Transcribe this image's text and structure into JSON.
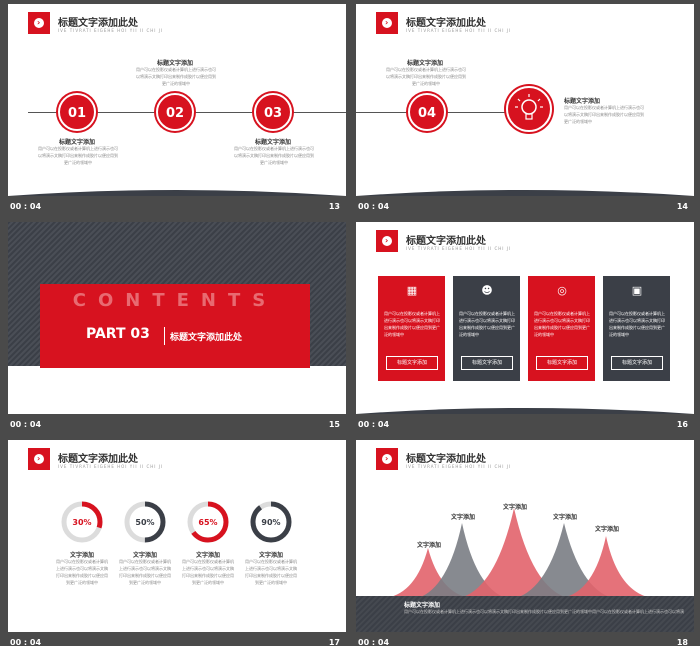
{
  "common": {
    "title": "标题文字添加此处",
    "subtitle": "IVE TIVRATI EIGEHE HOI YII II CHI JI",
    "time": "00 : 04",
    "text_title": "标题文字添加",
    "text_body_1": "用户可以在投影仪或者计算机上进行演示也可以将演示文稿打印出来制作成胶片以便应用到更广泛的领域中",
    "text_body_2": "用户可以在投影仪或者计算机上进行演示也可以将演示文稿打印出来制作成胶片以便应用到更广泛的领域中",
    "text_body_short": "用户可以在投影仪或者计算机上进行演示也可以将演示文稿打印出来制作成胶片以便应用到更广泛的领域中",
    "label_short": "文字添加"
  },
  "slides": [
    {
      "number": "13",
      "steps": [
        "01",
        "02",
        "03"
      ]
    },
    {
      "number": "14",
      "steps": [
        "04"
      ]
    },
    {
      "number": "15",
      "contents": "CONTENTS",
      "part": "PART 03",
      "part_title": "标题文字添加此处"
    },
    {
      "number": "16",
      "cards": [
        {
          "button": "标题文字添加",
          "color": "#d7121f"
        },
        {
          "button": "标题文字添加",
          "color": "#3b3f47"
        },
        {
          "button": "标题文字添加",
          "color": "#d7121f"
        },
        {
          "button": "标题文字添加",
          "color": "#3b3f47"
        }
      ]
    },
    {
      "number": "17",
      "donuts": [
        {
          "label": "30%",
          "value": 30,
          "color": "#d7121f"
        },
        {
          "label": "50%",
          "value": 50,
          "color": "#3b3f47"
        },
        {
          "label": "65%",
          "value": 65,
          "color": "#d7121f"
        },
        {
          "label": "90%",
          "value": 90,
          "color": "#3b3f47"
        }
      ]
    },
    {
      "number": "18",
      "peaks": [
        "文字添加",
        "文字添加",
        "文字添加",
        "文字添加",
        "文字添加"
      ],
      "footer_title": "标题文字添加",
      "footer_body": "用户可以在投影仪或者计算机上进行演示也可以将演示文稿打印出来制作成胶片以便应用到更广泛的领域中用户可以在投影仪或者计算机上进行演示也可以将演示文稿打印出来制作成胶片以便应用到更广泛的领域中"
    }
  ],
  "colors": {
    "red": "#d7121f",
    "dark": "#3b3f47",
    "pink": "#e2636b",
    "gray": "#9a9a9a"
  }
}
